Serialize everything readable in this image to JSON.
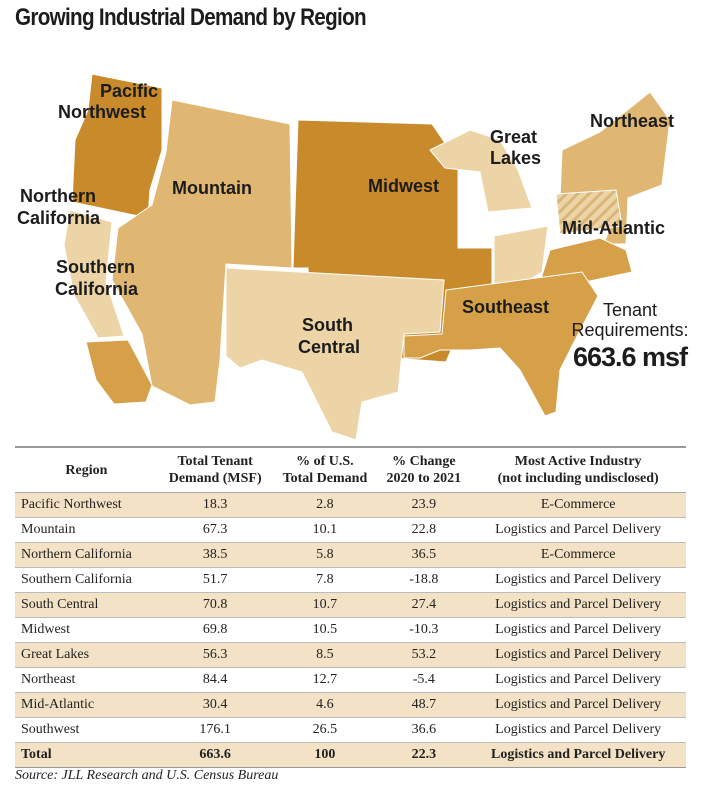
{
  "title": "Growing Industrial Demand by Region",
  "colors": {
    "dark": "#c98a2c",
    "mid_dark": "#d6a048",
    "mid": "#dfb773",
    "light": "#ecd4a6"
  },
  "map": {
    "labels": {
      "pacific_northwest": [
        "Pacific",
        "Northwest"
      ],
      "northern_california": [
        "Northern",
        "California"
      ],
      "southern_california": [
        "Southern",
        "California"
      ],
      "mountain": "Mountain",
      "midwest": "Midwest",
      "great_lakes": [
        "Great",
        "Lakes"
      ],
      "northeast": "Northeast",
      "mid_atlantic": "Mid-Atlantic",
      "south_central": [
        "South",
        "Central"
      ],
      "southeast": "Southeast"
    },
    "tenant_label": [
      "Tenant",
      "Requirements:"
    ],
    "tenant_value": "663.6 msf"
  },
  "table": {
    "headers": [
      [
        "Region"
      ],
      [
        "Total Tenant",
        "Demand (MSF)"
      ],
      [
        "% of U.S.",
        "Total Demand"
      ],
      [
        "% Change",
        "2020 to 2021"
      ],
      [
        "Most Active Industry",
        "(not including undisclosed)"
      ]
    ],
    "rows": [
      [
        "Pacific Northwest",
        "18.3",
        "2.8",
        "23.9",
        "E-Commerce"
      ],
      [
        "Mountain",
        "67.3",
        "10.1",
        "22.8",
        "Logistics and Parcel Delivery"
      ],
      [
        "Northern California",
        "38.5",
        "5.8",
        "36.5",
        "E-Commerce"
      ],
      [
        "Southern California",
        "51.7",
        "7.8",
        "-18.8",
        "Logistics and Parcel Delivery"
      ],
      [
        "South Central",
        "70.8",
        "10.7",
        "27.4",
        "Logistics and Parcel Delivery"
      ],
      [
        "Midwest",
        "69.8",
        "10.5",
        "-10.3",
        "Logistics and Parcel Delivery"
      ],
      [
        "Great Lakes",
        "56.3",
        "8.5",
        "53.2",
        "Logistics and Parcel Delivery"
      ],
      [
        "Northeast",
        "84.4",
        "12.7",
        "-5.4",
        "Logistics and Parcel Delivery"
      ],
      [
        "Mid-Atlantic",
        "30.4",
        "4.6",
        "48.7",
        "Logistics and Parcel Delivery"
      ],
      [
        "Southwest",
        "176.1",
        "26.5",
        "36.6",
        "Logistics and Parcel Delivery"
      ]
    ],
    "total": [
      "Total",
      "663.6",
      "100",
      "22.3",
      "Logistics and Parcel Delivery"
    ]
  },
  "source": "Source: JLL Research and U.S. Census Bureau"
}
